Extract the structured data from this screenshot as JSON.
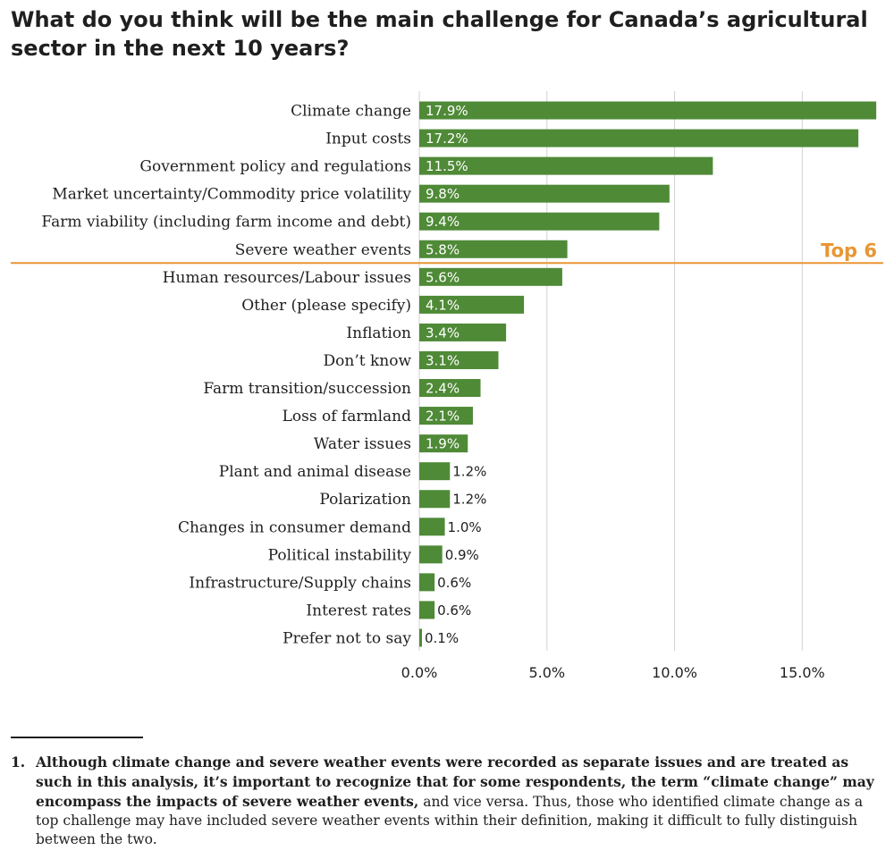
{
  "title": "What do you think will be the main challenge for Canada’s agricultural sector in the next 10 years?",
  "colors": {
    "bar": "#4f8a37",
    "grid": "#d2d2d2",
    "cutoff": "#e89634",
    "text": "#1f1f1f"
  },
  "chart_data": {
    "type": "bar",
    "orientation": "horizontal",
    "title": "What do you think will be the main challenge for Canada’s agricultural sector in the next 10 years?",
    "categories": [
      "Climate change",
      "Input costs",
      "Government policy and regulations",
      "Market uncertainty/Commodity price volatility",
      "Farm viability (including farm income and debt)",
      "Severe weather events",
      "Human resources/Labour issues",
      "Other (please specify)",
      "Inflation",
      "Don’t know",
      "Farm transition/succession",
      "Loss of farmland",
      "Water issues",
      "Plant and animal disease",
      "Polarization",
      "Changes in consumer demand",
      "Political instability",
      "Infrastructure/Supply chains",
      "Interest rates",
      "Prefer not to say"
    ],
    "values": [
      17.9,
      17.2,
      11.5,
      9.8,
      9.4,
      5.8,
      5.6,
      4.1,
      3.4,
      3.1,
      2.4,
      2.1,
      1.9,
      1.2,
      1.2,
      1.0,
      0.9,
      0.6,
      0.6,
      0.1
    ],
    "value_labels": [
      "17.9%",
      "17.2%",
      "11.5%",
      "9.8%",
      "9.4%",
      "5.8%",
      "5.6%",
      "4.1%",
      "3.4%",
      "3.1%",
      "2.4%",
      "2.1%",
      "1.9%",
      "1.2%",
      "1.2%",
      "1.0%",
      "0.9%",
      "0.6%",
      "0.6%",
      "0.1%"
    ],
    "xlim": [
      0,
      18
    ],
    "xticks": [
      0,
      5,
      10,
      15
    ],
    "xtick_labels": [
      "0.0%",
      "5.0%",
      "10.0%",
      "15.0%"
    ],
    "grid": true,
    "legend": "none",
    "cutoff_after_index": 5,
    "cutoff_label": "Top 6"
  },
  "footnote": {
    "number": "1.",
    "bold_text": "Although climate change and severe weather events were recorded as separate issues and are treated as such in this analysis, it’s important to recognize that for some respondents, the term “climate change” may encompass the impacts of severe weather events,",
    "text": " and vice versa. Thus, those who identified climate change as a top challenge may have included severe weather events within their definition, making it difficult to fully distinguish between the two."
  }
}
